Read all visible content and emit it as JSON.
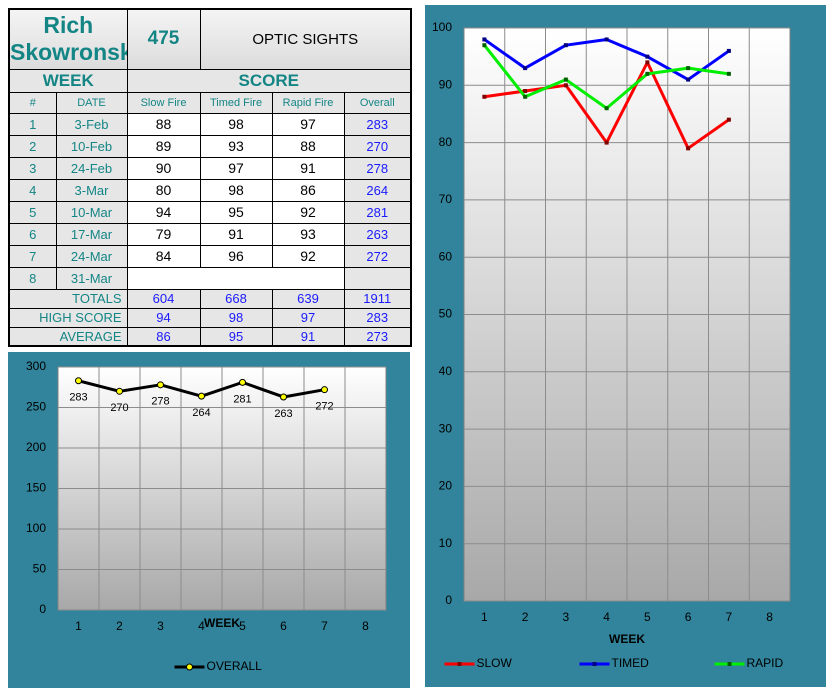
{
  "table": {
    "name": "Rich Skowronski",
    "score": 475,
    "category": "OPTIC SIGHTS",
    "group_headers": [
      "WEEK",
      "SCORE"
    ],
    "columns": [
      "#",
      "DATE",
      "Slow Fire",
      "Timed Fire",
      "Rapid Fire",
      "Overall"
    ],
    "rows": [
      [
        1,
        "3-Feb",
        88,
        98,
        97,
        283
      ],
      [
        2,
        "10-Feb",
        89,
        93,
        88,
        270
      ],
      [
        3,
        "24-Feb",
        90,
        97,
        91,
        278
      ],
      [
        4,
        "3-Mar",
        80,
        98,
        86,
        264
      ],
      [
        5,
        "10-Mar",
        94,
        95,
        92,
        281
      ],
      [
        6,
        "17-Mar",
        79,
        91,
        93,
        263
      ],
      [
        7,
        "24-Mar",
        84,
        96,
        92,
        272
      ],
      [
        8,
        "31-Mar"
      ]
    ],
    "summary": [
      [
        "TOTALS",
        604,
        668,
        639,
        1911
      ],
      [
        "HIGH SCORE",
        94,
        98,
        97,
        283
      ],
      [
        "AVERAGE",
        86,
        95,
        91,
        273
      ]
    ]
  },
  "chart_data": [
    {
      "type": "line",
      "x_label": "WEEK",
      "categories": [
        "1",
        "2",
        "3",
        "4",
        "5",
        "6",
        "7",
        "8"
      ],
      "series": [
        {
          "name": "OVERALL",
          "color": "#000000",
          "marker_color": "#ffff00",
          "values": [
            283,
            270,
            278,
            264,
            281,
            263,
            272,
            null
          ]
        }
      ],
      "ylim": [
        0,
        300
      ],
      "yticks": [
        0,
        50,
        100,
        150,
        200,
        250,
        300
      ],
      "grid": true,
      "data_labels": true,
      "legend": "bottom"
    },
    {
      "type": "line",
      "x_label": "WEEK",
      "categories": [
        "1",
        "2",
        "3",
        "4",
        "5",
        "6",
        "7",
        "8"
      ],
      "series": [
        {
          "name": "SLOW",
          "color": "#ff0000",
          "marker_color": "#800000",
          "values": [
            88,
            89,
            90,
            80,
            94,
            79,
            84,
            null
          ]
        },
        {
          "name": "TIMED",
          "color": "#0000ff",
          "marker_color": "#000080",
          "values": [
            98,
            93,
            97,
            98,
            95,
            91,
            96,
            null
          ]
        },
        {
          "name": "RAPID",
          "color": "#00ee00",
          "marker_color": "#006000",
          "values": [
            97,
            88,
            91,
            86,
            92,
            93,
            92,
            null
          ]
        }
      ],
      "ylim": [
        0,
        100
      ],
      "yticks": [
        0,
        10,
        20,
        30,
        40,
        50,
        60,
        70,
        80,
        90,
        100
      ],
      "grid": true,
      "data_labels": false,
      "legend": "bottom"
    }
  ]
}
